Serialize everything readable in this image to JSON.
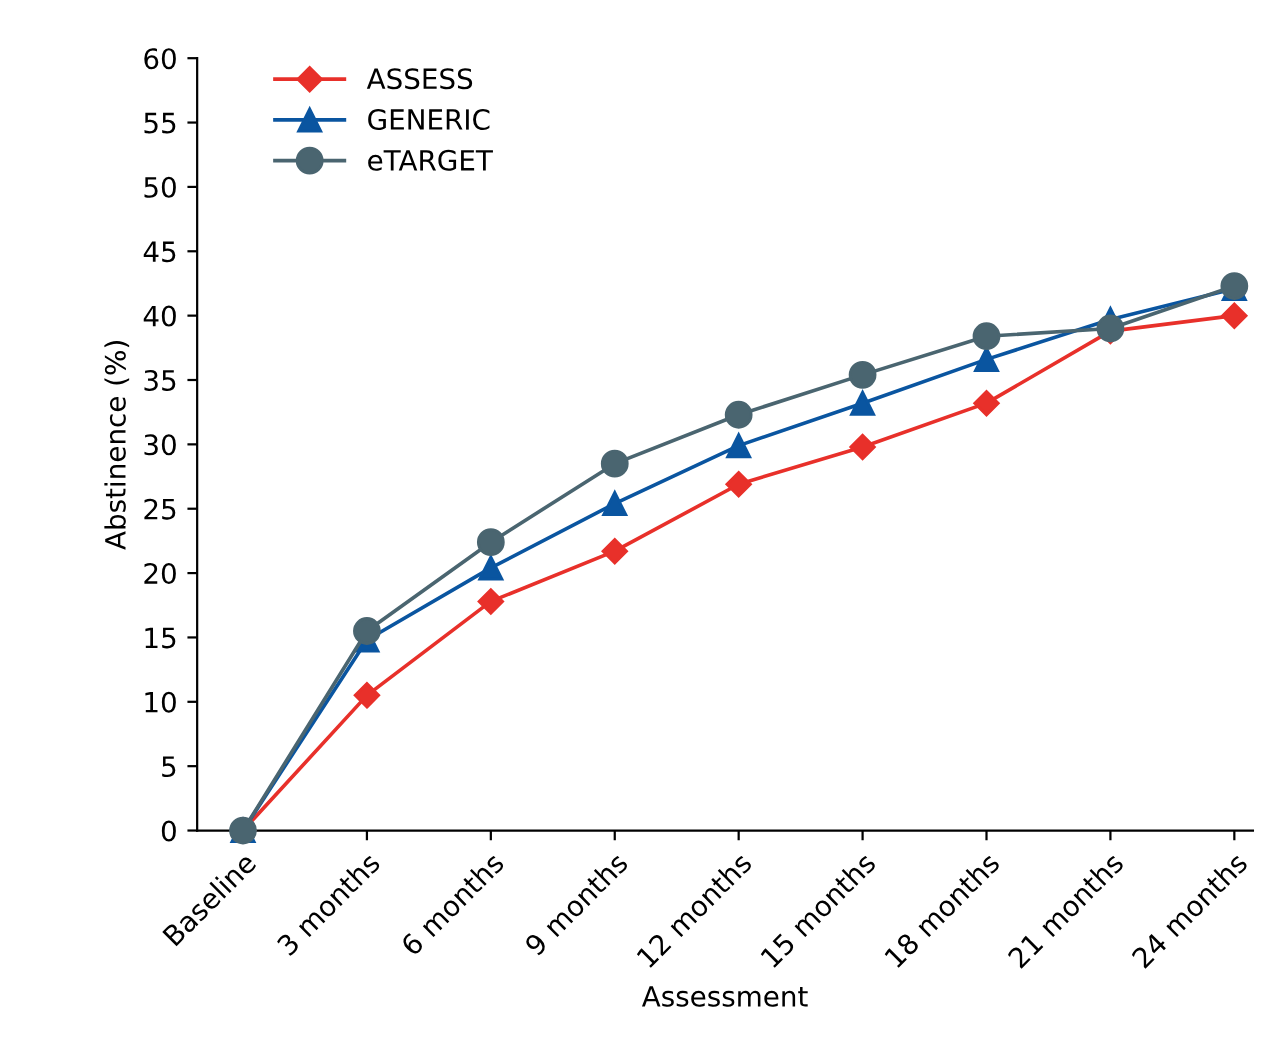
{
  "chart_data": {
    "type": "line",
    "xlabel": "Assessment",
    "ylabel": "Abstinence (%)",
    "categories": [
      "Baseline",
      "3 months",
      "6 months",
      "9 months",
      "12 months",
      "15 months",
      "18 months",
      "21 months",
      "24 months"
    ],
    "series": [
      {
        "name": "ASSESS",
        "color": "#e8302a",
        "marker": "diamond",
        "values": [
          0,
          10.5,
          17.8,
          21.7,
          26.9,
          29.8,
          33.2,
          38.8,
          40.0
        ]
      },
      {
        "name": "GENERIC",
        "color": "#0a55a0",
        "marker": "triangle",
        "values": [
          0,
          14.8,
          20.4,
          25.4,
          29.9,
          33.2,
          36.6,
          39.7,
          42.1
        ]
      },
      {
        "name": "eTARGET",
        "color": "#4a6570",
        "marker": "circle",
        "values": [
          0,
          15.5,
          22.4,
          28.5,
          32.3,
          35.4,
          38.4,
          39.0,
          42.3
        ]
      }
    ],
    "ylim": [
      0,
      60
    ],
    "yticks": [
      0,
      5,
      10,
      15,
      20,
      25,
      30,
      35,
      40,
      45,
      50,
      55,
      60
    ],
    "grid": false,
    "legend": "top left",
    "line_style": "solid"
  }
}
